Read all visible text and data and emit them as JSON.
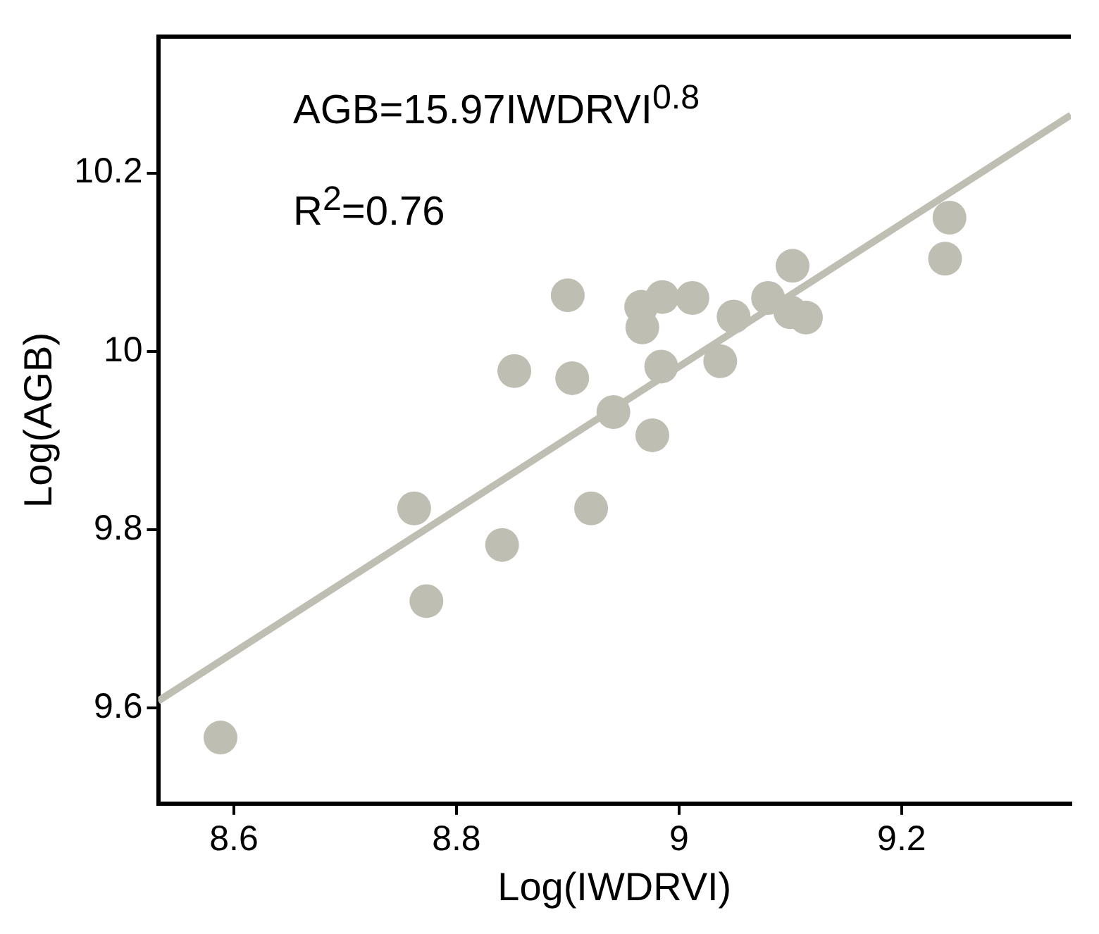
{
  "chart_data": {
    "type": "scatter",
    "xlabel": "Log(IWDRVI)",
    "ylabel": "Log(AGB)",
    "xlim": [
      8.532,
      9.352
    ],
    "ylim": [
      9.493,
      10.353
    ],
    "xticks": [
      8.6,
      8.8,
      9,
      9.2
    ],
    "yticks": [
      9.6,
      9.8,
      10,
      10.2
    ],
    "grid": false,
    "legend": false,
    "annotations": [
      "AGB=15.97IWDRVI$^{0.8}$",
      "R$^{2}$=0.76"
    ],
    "series": [
      {
        "color": "#bebeb2",
        "marker": "circle",
        "x": [
          8.588,
          8.762,
          8.773,
          8.841,
          8.921,
          8.852,
          8.9,
          8.904,
          8.941,
          8.984,
          8.976,
          8.966,
          8.967,
          8.985,
          9.012,
          9.037,
          9.049,
          9.08,
          9.102,
          9.1,
          9.114,
          9.243,
          9.239
        ],
        "values": [
          9.567,
          9.824,
          9.72,
          9.783,
          9.824,
          9.978,
          10.063,
          9.97,
          9.932,
          9.983,
          9.906,
          10.05,
          10.027,
          10.061,
          10.06,
          9.989,
          10.039,
          10.06,
          10.096,
          10.044,
          10.038,
          10.15,
          10.104
        ]
      },
      {
        "type": "line",
        "color": "#bebeb2",
        "marker": "none",
        "line_style": "solid",
        "x": [
          8.532,
          9.352
        ],
        "values": [
          9.608,
          10.265
        ]
      }
    ]
  }
}
